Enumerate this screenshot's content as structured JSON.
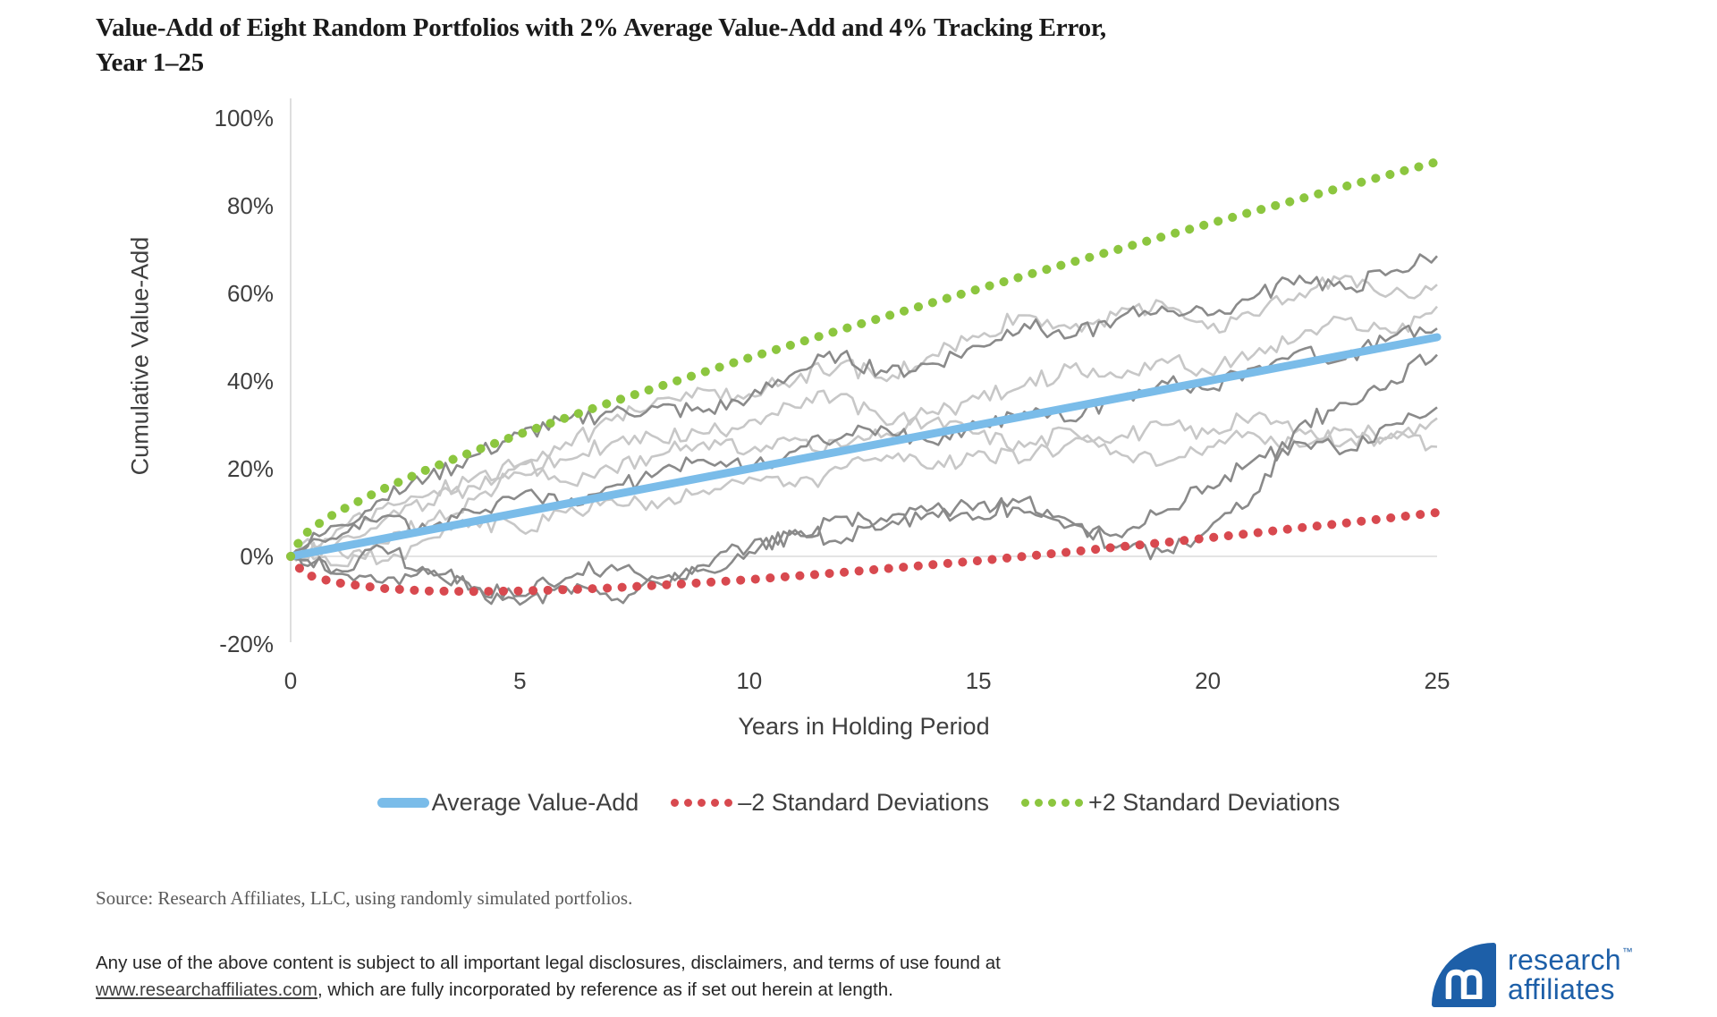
{
  "title": {
    "line1": "Value-Add of Eight Random Portfolios with 2% Average Value-Add and 4% Tracking Error,",
    "line2": "Year 1–25"
  },
  "chart_data": {
    "type": "line",
    "title": "Value-Add of Eight Random Portfolios with 2% Average Value-Add and 4% Tracking Error, Year 1–25",
    "xlabel": "Years in Holding Period",
    "ylabel": "Cumulative Value-Add",
    "xlim": [
      0,
      25
    ],
    "ylim": [
      -20,
      100
    ],
    "grid": "zero-line-only",
    "legend_position": "bottom",
    "x_ticks": [
      {
        "label": "0",
        "v": 0
      },
      {
        "label": "5",
        "v": 5
      },
      {
        "label": "10",
        "v": 10
      },
      {
        "label": "15",
        "v": 15
      },
      {
        "label": "20",
        "v": 20
      },
      {
        "label": "25",
        "v": 25
      }
    ],
    "y_ticks": [
      {
        "label": "100%",
        "v": 100
      },
      {
        "label": "80%",
        "v": 80
      },
      {
        "label": "60%",
        "v": 60
      },
      {
        "label": "40%",
        "v": 40
      },
      {
        "label": "20%",
        "v": 20
      },
      {
        "label": "0%",
        "v": 0
      },
      {
        "label": "-20%",
        "v": -20
      }
    ],
    "years": [
      0,
      1,
      2,
      3,
      4,
      5,
      6,
      7,
      8,
      9,
      10,
      11,
      12,
      13,
      14,
      15,
      16,
      17,
      18,
      19,
      20,
      21,
      22,
      23,
      24,
      25
    ],
    "series": [
      {
        "name": "Average Value-Add",
        "role": "mean",
        "style": "solid",
        "color": "#7abce9",
        "x": [
          0,
          25
        ],
        "values": [
          0,
          50
        ]
      },
      {
        "name": "–2 Standard Deviations",
        "role": "band",
        "style": "dotted",
        "color": "#d8494f",
        "x": [
          0,
          0.25,
          0.5,
          1,
          2,
          3,
          4,
          5,
          6,
          7,
          8,
          9,
          10,
          11,
          12,
          13,
          14,
          15,
          16,
          17,
          18,
          19,
          20,
          21,
          22,
          23,
          24,
          25
        ],
        "values": [
          0,
          -3.5,
          -4.7,
          -6,
          -7.3,
          -7.9,
          -8,
          -7.9,
          -7.6,
          -7.2,
          -6.6,
          -6,
          -5.3,
          -4.5,
          -3.7,
          -2.8,
          -1.9,
          -1,
          0,
          1,
          2.1,
          3.1,
          4.2,
          5.3,
          6.5,
          7.6,
          8.8,
          10
        ]
      },
      {
        "name": "+2 Standard Deviations",
        "role": "band",
        "style": "dotted",
        "color": "#8cc63f",
        "x": [
          0,
          0.25,
          0.5,
          1,
          2,
          3,
          4,
          5,
          6,
          7,
          8,
          9,
          10,
          11,
          12,
          13,
          14,
          15,
          16,
          17,
          18,
          19,
          20,
          21,
          22,
          23,
          24,
          25
        ],
        "values": [
          0,
          4.5,
          6.7,
          10,
          15.3,
          19.9,
          24,
          27.9,
          31.6,
          35.2,
          38.6,
          42,
          45.3,
          48.5,
          51.7,
          54.8,
          57.9,
          61,
          64,
          67,
          69.9,
          72.9,
          75.8,
          78.7,
          81.5,
          84.4,
          87.2,
          90
        ]
      },
      {
        "name": "Portfolio 1",
        "role": "portfolio",
        "shade": "dark",
        "color": "#8a8a8a",
        "jitter": 2.3,
        "values": [
          0,
          7,
          13,
          18,
          23,
          28,
          31,
          33,
          34,
          33,
          36,
          42,
          46,
          42,
          44,
          48,
          53,
          50,
          54,
          57,
          55,
          59,
          64,
          61,
          65,
          68.5
        ]
      },
      {
        "name": "Portfolio 2",
        "role": "portfolio",
        "shade": "light",
        "color": "#c7c7c7",
        "jitter": 2.3,
        "values": [
          0,
          3,
          8,
          12,
          16,
          21,
          26,
          31,
          36,
          38,
          37,
          40,
          44,
          40,
          46,
          50,
          55,
          52,
          55,
          58,
          52,
          55,
          60,
          64,
          60,
          62
        ]
      },
      {
        "name": "Portfolio 3",
        "role": "portfolio",
        "shade": "light",
        "color": "#c7c7c7",
        "jitter": 2.2,
        "values": [
          0,
          -2,
          3,
          8,
          13,
          19,
          22,
          26,
          27,
          28,
          31,
          34,
          37,
          30,
          33,
          36,
          39,
          43,
          41,
          45,
          42,
          46,
          50,
          54,
          51,
          57
        ]
      },
      {
        "name": "Portfolio 4",
        "role": "portfolio",
        "shade": "dark",
        "color": "#8a8a8a",
        "jitter": 2.2,
        "values": [
          0,
          4,
          9,
          6,
          10,
          14,
          12,
          16,
          19,
          22,
          20,
          24,
          27,
          29,
          26,
          30,
          33,
          31,
          36,
          40,
          38,
          43,
          47,
          45,
          50,
          52
        ]
      },
      {
        "name": "Portfolio 5",
        "role": "portfolio",
        "shade": "dark",
        "color": "#8a8a8a",
        "jitter": 2.3,
        "values": [
          0,
          -3,
          2,
          -4,
          -8,
          -11,
          -7,
          -10,
          -5,
          -2,
          2,
          6,
          3,
          8,
          10,
          12,
          10,
          8,
          2,
          1,
          6,
          14,
          30,
          35,
          40,
          46
        ]
      },
      {
        "name": "Portfolio 6",
        "role": "portfolio",
        "shade": "dark",
        "color": "#8a8a8a",
        "jitter": 2.2,
        "values": [
          0,
          -4,
          -6,
          -3,
          -7,
          -9,
          -5,
          -2,
          -6,
          -3,
          1,
          5,
          9,
          7,
          11,
          9,
          13,
          7,
          5,
          10,
          16,
          22,
          26,
          24,
          30,
          34
        ]
      },
      {
        "name": "Portfolio 7",
        "role": "portfolio",
        "shade": "light",
        "color": "#c7c7c7",
        "jitter": 2.2,
        "values": [
          0,
          2,
          -1,
          4,
          8,
          6,
          10,
          13,
          11,
          15,
          18,
          16,
          20,
          23,
          20,
          24,
          22,
          26,
          24,
          21,
          25,
          28,
          25,
          29,
          27,
          31.5
        ]
      },
      {
        "name": "Portfolio 8",
        "role": "portfolio",
        "shade": "light",
        "color": "#c7c7c7",
        "jitter": 2.2,
        "values": [
          0,
          6,
          11,
          14,
          18,
          21,
          17,
          20,
          23,
          26,
          24,
          27,
          25,
          28,
          31,
          28,
          25,
          29,
          27,
          30,
          28,
          32,
          29,
          26,
          28,
          25
        ]
      }
    ]
  },
  "source": "Source: Research Affiliates, LLC, using randomly simulated portfolios.",
  "footer": {
    "line1": "Any use of the above content is subject to all important legal disclosures, disclaimers, and terms of use found at",
    "link": "www.researchaffiliates.com",
    "line2_rest": ", which are fully incorporated by reference as if set out herein at length."
  },
  "logo": {
    "line1": "research",
    "line2": "affiliates",
    "tm": "™"
  }
}
